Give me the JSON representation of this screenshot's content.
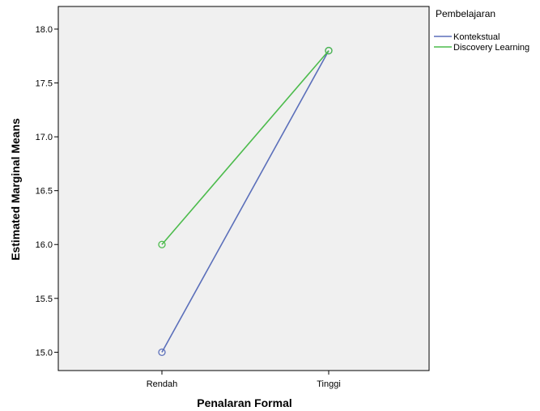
{
  "chart_data": {
    "type": "line",
    "xlabel": "Penalaran Formal",
    "ylabel": "Estimated Marginal Means",
    "categories": [
      "Rendah",
      "Tinggi"
    ],
    "ylim": [
      14.83,
      18.21
    ],
    "yticks": [
      "15.0",
      "15.5",
      "16.0",
      "16.5",
      "17.0",
      "17.5",
      "18.0"
    ],
    "grid": false,
    "legend_position": "right",
    "legend_title": "Pembelajaran",
    "plot_background": "#f0f0f0",
    "series": [
      {
        "name": "Kontekstual",
        "color": "#5b6fba",
        "values": [
          15.0,
          17.8
        ]
      },
      {
        "name": "Discovery Learning",
        "color": "#4cbb4c",
        "values": [
          16.0,
          17.8
        ]
      }
    ]
  }
}
